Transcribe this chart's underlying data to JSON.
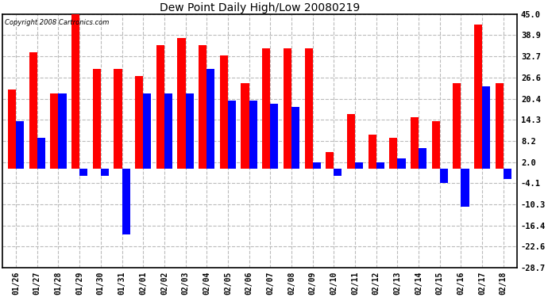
{
  "title": "Dew Point Daily High/Low 20080219",
  "copyright": "Copyright 2008 Cartronics.com",
  "dates": [
    "01/26",
    "01/27",
    "01/28",
    "01/29",
    "01/30",
    "01/31",
    "02/01",
    "02/02",
    "02/03",
    "02/04",
    "02/05",
    "02/06",
    "02/07",
    "02/08",
    "02/09",
    "02/10",
    "02/11",
    "02/12",
    "02/13",
    "02/14",
    "02/15",
    "02/16",
    "02/17",
    "02/18"
  ],
  "highs": [
    23,
    34,
    22,
    46,
    29,
    29,
    27,
    36,
    38,
    36,
    33,
    25,
    35,
    35,
    35,
    5,
    16,
    10,
    9,
    15,
    14,
    25,
    42,
    25
  ],
  "lows": [
    14,
    9,
    22,
    -2,
    -2,
    -19,
    22,
    22,
    22,
    29,
    20,
    20,
    19,
    18,
    2,
    -2,
    2,
    2,
    3,
    6,
    -4,
    -11,
    24,
    -3
  ],
  "high_color": "#ff0000",
  "low_color": "#0000ff",
  "bg_color": "#ffffff",
  "grid_color": "#bbbbbb",
  "yticks": [
    45.0,
    38.9,
    32.7,
    26.6,
    20.4,
    14.3,
    8.2,
    2.0,
    -4.1,
    -10.3,
    -16.4,
    -22.6,
    -28.7
  ],
  "ylim": [
    -28.7,
    45.0
  ],
  "bar_width": 0.38,
  "figwidth": 6.9,
  "figheight": 3.75,
  "dpi": 100
}
